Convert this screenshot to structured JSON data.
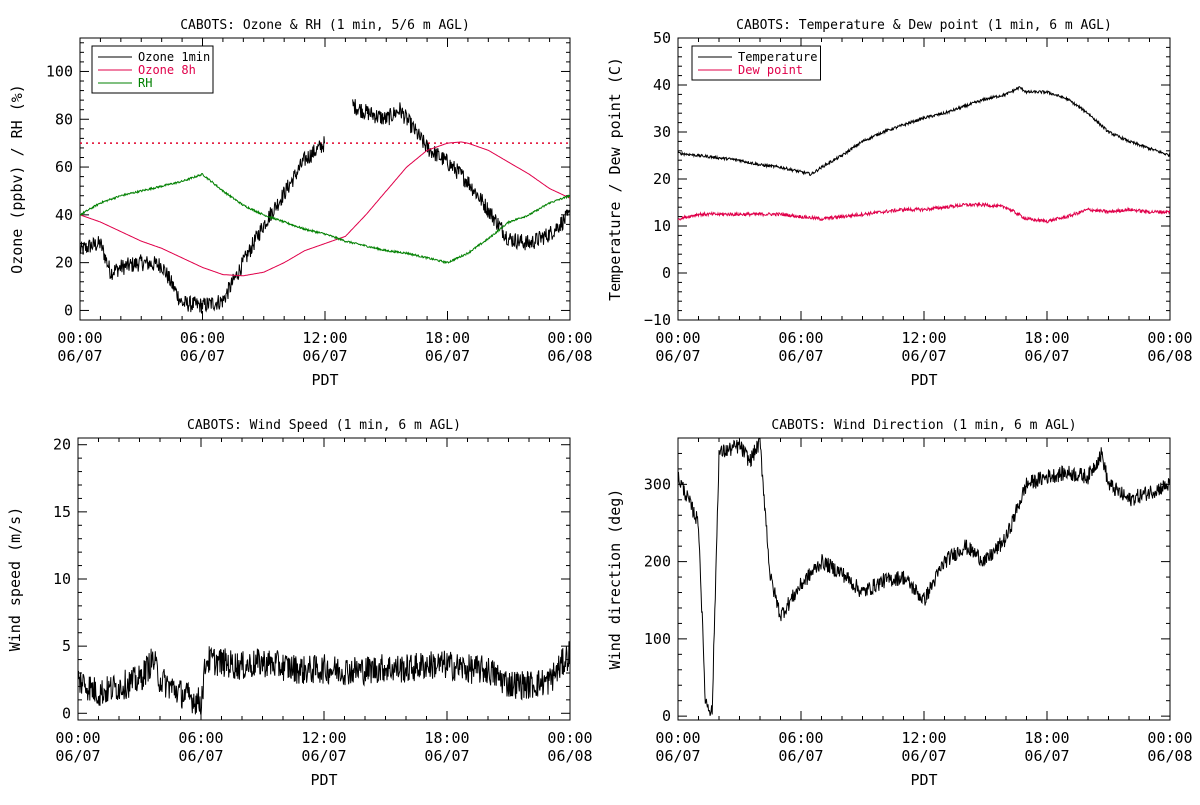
{
  "chart_data": [
    {
      "type": "line",
      "title": "CABOTS: Ozone & RH (1 min, 5/6 m AGL)",
      "xlabel": "PDT",
      "ylabel": "Ozone (ppbv) / RH (%)",
      "xlim": [
        "06/07 00:00",
        "06/08 00:00"
      ],
      "ylim": [
        -4,
        114
      ],
      "x_ticks": [
        "00:00\n06/07",
        "06:00\n06/07",
        "12:00\n06/07",
        "18:00\n06/07",
        "00:00\n06/08"
      ],
      "y_ticks": [
        "0",
        "20",
        "40",
        "60",
        "80",
        "100"
      ],
      "grid": false,
      "legend": "top-left",
      "reference_line": {
        "y": 70,
        "style": "dotted",
        "color": "#e0002a"
      },
      "series": [
        {
          "name": "Ozone 1min",
          "color": "#000000",
          "noise": 3.5,
          "x": [
            "00:00",
            "00:30",
            "01:00",
            "01:30",
            "02:00",
            "03:00",
            "04:00",
            "05:00",
            "06:00",
            "07:00",
            "08:00",
            "09:00",
            "10:00",
            "11:00",
            "12:00",
            null,
            "13:20",
            "14:00",
            "15:00",
            "15:40",
            "16:30",
            "17:00",
            "18:00",
            "19:00",
            "20:00",
            "21:00",
            "22:00",
            "23:00",
            "24:00"
          ],
          "y": [
            25,
            27,
            28,
            16,
            18,
            20,
            19,
            3,
            2,
            4,
            20,
            36,
            49,
            63,
            70,
            null,
            86,
            83,
            80,
            84,
            74,
            68,
            62,
            54,
            42,
            30,
            28,
            32,
            40
          ]
        },
        {
          "name": "Ozone 8h",
          "color": "#e0004a",
          "noise": 0,
          "x": [
            "00:00",
            "01:00",
            "02:00",
            "03:00",
            "04:00",
            "05:00",
            "06:00",
            "07:00",
            "08:00",
            "09:00",
            "10:00",
            "11:00",
            "12:00",
            "13:00",
            "14:00",
            "15:00",
            "16:00",
            "17:00",
            "18:00",
            "18:40",
            "19:00",
            "20:00",
            "21:00",
            "22:00",
            "23:00",
            "24:00"
          ],
          "y": [
            40,
            37,
            33,
            29,
            26,
            22,
            18,
            15,
            14.5,
            16,
            20,
            25,
            28,
            31,
            40,
            50,
            60,
            67,
            70,
            70.5,
            70,
            67,
            62,
            57,
            51,
            47
          ]
        },
        {
          "name": "RH",
          "color": "#008000",
          "noise": 0.4,
          "x": [
            "00:00",
            "01:00",
            "02:00",
            "03:00",
            "04:00",
            "05:00",
            "06:00",
            "07:00",
            "08:00",
            "09:00",
            "10:00",
            "11:00",
            "12:00",
            "13:00",
            "14:00",
            "15:00",
            "16:00",
            "17:00",
            "18:00",
            "19:00",
            "20:00",
            "21:00",
            "22:00",
            "23:00",
            "24:00"
          ],
          "y": [
            40,
            45,
            48,
            50,
            52,
            54,
            57,
            50,
            44,
            40,
            37,
            34,
            32,
            29,
            27,
            25,
            24,
            22,
            20,
            24,
            30,
            37,
            40,
            45,
            48
          ]
        }
      ]
    },
    {
      "type": "line",
      "title": "CABOTS: Temperature & Dew point (1 min, 6 m AGL)",
      "xlabel": "PDT",
      "ylabel": "Temperature / Dew point (C)",
      "xlim": [
        "06/07 00:00",
        "06/08 00:00"
      ],
      "ylim": [
        -10,
        50
      ],
      "x_ticks": [
        "00:00\n06/07",
        "06:00\n06/07",
        "12:00\n06/07",
        "18:00\n06/07",
        "00:00\n06/08"
      ],
      "y_ticks": [
        "−10",
        "0",
        "10",
        "20",
        "30",
        "40",
        "50"
      ],
      "grid": false,
      "legend": "top-left",
      "series": [
        {
          "name": "Temperature",
          "color": "#000000",
          "noise": 0.3,
          "x": [
            "00:00",
            "01:00",
            "02:00",
            "03:00",
            "04:00",
            "05:00",
            "06:00",
            "06:30",
            "07:00",
            "08:00",
            "09:00",
            "10:00",
            "11:00",
            "12:00",
            "13:00",
            "14:00",
            "15:00",
            "16:00",
            "16:40",
            "17:00",
            "18:00",
            "19:00",
            "20:00",
            "21:00",
            "22:00",
            "23:00",
            "24:00"
          ],
          "y": [
            25.5,
            25,
            24.5,
            24,
            23,
            22.5,
            21.5,
            21,
            22.5,
            25,
            28,
            30,
            31.5,
            33,
            34,
            35.5,
            37,
            38,
            39.5,
            38.5,
            38.5,
            37,
            34,
            30,
            28,
            26.5,
            25
          ]
        },
        {
          "name": "Dew point",
          "color": "#e0004a",
          "noise": 0.35,
          "x": [
            "00:00",
            "01:00",
            "02:00",
            "03:00",
            "04:00",
            "05:00",
            "06:00",
            "07:00",
            "08:00",
            "09:00",
            "10:00",
            "11:00",
            "12:00",
            "13:00",
            "14:00",
            "15:00",
            "16:00",
            "17:00",
            "18:00",
            "19:00",
            "20:00",
            "21:00",
            "22:00",
            "23:00",
            "24:00"
          ],
          "y": [
            11.5,
            12.5,
            12.5,
            12.5,
            12.5,
            12.5,
            12,
            11.5,
            12,
            12.5,
            13,
            13.5,
            13.5,
            14,
            14.5,
            14.5,
            14,
            11.5,
            11,
            12,
            13.5,
            13,
            13.5,
            13,
            13
          ]
        }
      ]
    },
    {
      "type": "line",
      "title": "CABOTS: Wind Speed (1 min, 6 m AGL)",
      "xlabel": "PDT",
      "ylabel": "Wind speed (m/s)",
      "xlim": [
        "06/07 00:00",
        "06/08 00:00"
      ],
      "ylim": [
        -0.5,
        20.5
      ],
      "x_ticks": [
        "00:00\n06/07",
        "06:00\n06/07",
        "12:00\n06/07",
        "18:00\n06/07",
        "00:00\n06/08"
      ],
      "y_ticks": [
        "0",
        "5",
        "10",
        "15",
        "20"
      ],
      "grid": false,
      "series": [
        {
          "name": "",
          "color": "#000000",
          "noise": 1.1,
          "x": [
            "00:00",
            "01:00",
            "02:00",
            "03:00",
            "03:40",
            "04:00",
            "05:00",
            "06:00",
            "06:15",
            "07:00",
            "08:00",
            "09:00",
            "10:00",
            "11:00",
            "12:00",
            "13:00",
            "14:00",
            "15:00",
            "16:00",
            "17:00",
            "18:00",
            "19:00",
            "20:00",
            "21:00",
            "22:00",
            "23:00",
            "24:00"
          ],
          "y": [
            2.5,
            1.5,
            2,
            2.5,
            4,
            2.5,
            1.5,
            0.8,
            4,
            3.8,
            3.5,
            3.8,
            3.5,
            3.2,
            3.3,
            3.2,
            3.2,
            3.4,
            3.3,
            3.6,
            3.6,
            3.3,
            3.2,
            2.2,
            2.1,
            2.4,
            4.5
          ]
        }
      ]
    },
    {
      "type": "line",
      "title": "CABOTS: Wind Direction (1 min, 6 m AGL)",
      "xlabel": "PDT",
      "ylabel": "Wind direction (deg)",
      "xlim": [
        "06/07 00:00",
        "06/08 00:00"
      ],
      "ylim": [
        -5,
        360
      ],
      "x_ticks": [
        "00:00\n06/07",
        "06:00\n06/07",
        "12:00\n06/07",
        "18:00\n06/07",
        "00:00\n06/08"
      ],
      "y_ticks": [
        "0",
        "100",
        "200",
        "300"
      ],
      "grid": false,
      "series": [
        {
          "name": "",
          "color": "#000000",
          "noise": 10,
          "x": [
            "00:00",
            "00:30",
            "01:00",
            "01:20",
            "01:40",
            "02:00",
            "03:00",
            "03:30",
            "04:00",
            "04:30",
            "05:00",
            "06:00",
            "07:00",
            "08:00",
            "09:00",
            "10:00",
            "11:00",
            "12:00",
            "13:00",
            "14:00",
            "15:00",
            "16:00",
            "17:00",
            "18:00",
            "19:00",
            "20:00",
            "20:40",
            "21:00",
            "22:00",
            "23:00",
            "24:00"
          ],
          "y": [
            310,
            280,
            250,
            20,
            5,
            340,
            350,
            330,
            355,
            180,
            130,
            170,
            200,
            185,
            160,
            175,
            180,
            150,
            200,
            220,
            200,
            230,
            300,
            310,
            315,
            310,
            340,
            300,
            280,
            290,
            300
          ]
        }
      ]
    }
  ]
}
